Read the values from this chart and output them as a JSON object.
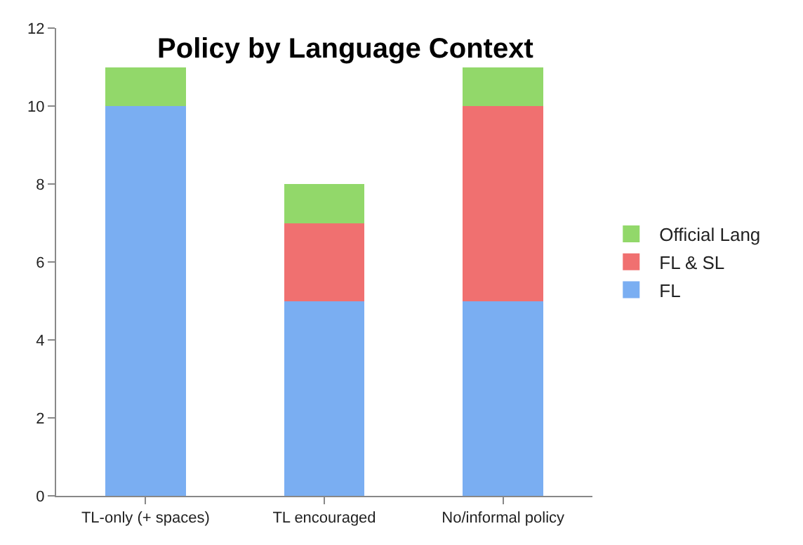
{
  "chart_data": {
    "type": "bar",
    "title": "Policy by Language Context",
    "stacked": true,
    "categories": [
      "TL-only (+ spaces)",
      "TL encouraged",
      "No/informal policy"
    ],
    "series": [
      {
        "name": "FL",
        "color": "#7aaef2",
        "values": [
          10,
          5,
          5
        ]
      },
      {
        "name": "FL & SL",
        "color": "#f07070",
        "values": [
          0,
          2,
          5
        ]
      },
      {
        "name": "Official Lang",
        "color": "#92d86a",
        "values": [
          1,
          1,
          1
        ]
      }
    ],
    "ylim": [
      0,
      12
    ],
    "yticks": [
      0,
      2,
      4,
      6,
      8,
      10,
      12
    ],
    "legend": "right"
  }
}
